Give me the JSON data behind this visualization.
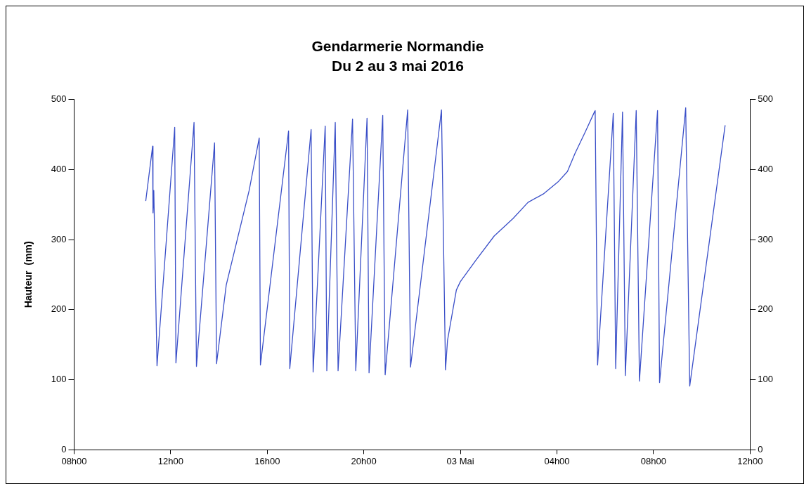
{
  "chart_data": {
    "type": "line",
    "title": "Gendarmerie Normandie",
    "subtitle": "Du 2 au 3 mai 2016",
    "ylabel": "Hauteur  (mm)",
    "xlim": [
      "2016-05-02T08:00",
      "2016-05-03T12:00"
    ],
    "xticks": [
      {
        "value": "2016-05-02T08:00",
        "label": "08h00"
      },
      {
        "value": "2016-05-02T12:00",
        "label": "12h00"
      },
      {
        "value": "2016-05-02T16:00",
        "label": "16h00"
      },
      {
        "value": "2016-05-02T20:00",
        "label": "20h00"
      },
      {
        "value": "2016-05-03T00:00",
        "label": "03 Mai"
      },
      {
        "value": "2016-05-03T04:00",
        "label": "04h00"
      },
      {
        "value": "2016-05-03T08:00",
        "label": "08h00"
      },
      {
        "value": "2016-05-03T12:00",
        "label": "12h00"
      }
    ],
    "ylim": [
      0,
      500
    ],
    "yticks": [
      0,
      100,
      200,
      300,
      400,
      500
    ],
    "y2lim": [
      0,
      500
    ],
    "y2ticks": [
      0,
      100,
      200,
      300,
      400,
      500
    ],
    "grid": false,
    "legend": false,
    "marker": "none",
    "line_style": "solid",
    "series": [
      {
        "color": "#3a4fc8",
        "x": [
          "2016-05-02T10:58",
          "2016-05-02T11:15",
          "2016-05-02T11:16",
          "2016-05-02T11:18",
          "2016-05-02T11:26",
          "2016-05-02T12:10",
          "2016-05-02T12:13",
          "2016-05-02T12:58",
          "2016-05-02T13:04",
          "2016-05-02T13:49",
          "2016-05-02T13:54",
          "2016-05-02T14:18",
          "2016-05-02T15:15",
          "2016-05-02T15:40",
          "2016-05-02T15:43",
          "2016-05-02T16:53",
          "2016-05-02T16:56",
          "2016-05-02T17:49",
          "2016-05-02T17:54",
          "2016-05-02T18:24",
          "2016-05-02T18:28",
          "2016-05-02T18:49",
          "2016-05-02T18:56",
          "2016-05-02T19:32",
          "2016-05-02T19:40",
          "2016-05-02T20:08",
          "2016-05-02T20:13",
          "2016-05-02T20:47",
          "2016-05-02T20:53",
          "2016-05-02T21:49",
          "2016-05-02T21:56",
          "2016-05-02T23:13",
          "2016-05-02T23:23",
          "2016-05-02T23:28",
          "2016-05-02T23:50",
          "2016-05-03T00:00",
          "2016-05-03T00:38",
          "2016-05-03T01:24",
          "2016-05-03T02:11",
          "2016-05-03T02:48",
          "2016-05-03T03:26",
          "2016-05-03T04:04",
          "2016-05-03T04:26",
          "2016-05-03T04:45",
          "2016-05-03T05:10",
          "2016-05-03T05:34",
          "2016-05-03T05:35",
          "2016-05-03T05:41",
          "2016-05-03T06:20",
          "2016-05-03T06:26",
          "2016-05-03T06:43",
          "2016-05-03T06:50",
          "2016-05-03T07:17",
          "2016-05-03T07:25",
          "2016-05-03T08:10",
          "2016-05-03T08:15",
          "2016-05-03T09:20",
          "2016-05-03T09:30",
          "2016-05-03T10:58"
        ],
        "values": [
          355,
          433,
          338,
          370,
          120,
          460,
          124,
          467,
          119,
          438,
          123,
          235,
          370,
          445,
          121,
          455,
          116,
          457,
          111,
          462,
          113,
          467,
          113,
          472,
          113,
          473,
          110,
          477,
          107,
          485,
          118,
          485,
          114,
          156,
          228,
          240,
          270,
          305,
          330,
          353,
          365,
          383,
          397,
          423,
          453,
          483,
          484,
          121,
          480,
          116,
          482,
          106,
          484,
          98,
          484,
          96,
          488,
          91,
          463
        ]
      }
    ]
  }
}
